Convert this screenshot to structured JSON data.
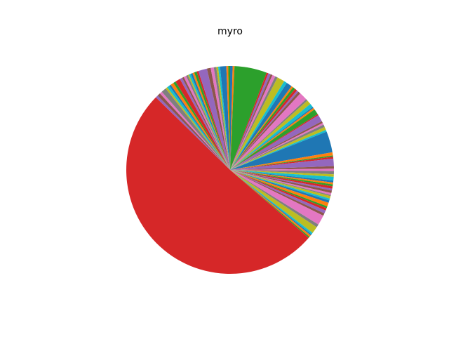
{
  "chart_data": {
    "type": "pie",
    "title": "myro",
    "start_angle_deg": 90,
    "direction": "clockwise",
    "legend": "none",
    "palette": [
      "#1f77b4",
      "#ff7f0e",
      "#2ca02c",
      "#d62728",
      "#9467bd",
      "#8c564b",
      "#e377c2",
      "#7f7f7f",
      "#bcbd22",
      "#17becf"
    ],
    "values": [
      0.4,
      0.3,
      5.2,
      0.3,
      0.4,
      0.3,
      0.5,
      0.4,
      1.2,
      0.5,
      0.9,
      0.3,
      0.4,
      0.4,
      0.3,
      0.4,
      1.3,
      0.3,
      0.7,
      0.6,
      0.2,
      0.3,
      0.9,
      0.2,
      1.1,
      0.3,
      0.3,
      0.4,
      0.5,
      0.3,
      3.4,
      0.5,
      0.2,
      0.3,
      1.2,
      0.4,
      0.4,
      0.5,
      0.4,
      0.6,
      0.3,
      0.3,
      0.3,
      0.4,
      0.3,
      0.4,
      0.3,
      0.2,
      0.4,
      0.3,
      0.4,
      0.6,
      0.3,
      0.4,
      0.5,
      0.4,
      1.6,
      0.5,
      1.1,
      0.3,
      0.2,
      0.3,
      0.2,
      52.6,
      0.4,
      0.5,
      0.4,
      0.8,
      0.3,
      0.4,
      0.3,
      0.5,
      0.4,
      0.8,
      0.4,
      0.3,
      0.4,
      0.3,
      0.2,
      0.3,
      0.3,
      0.3,
      0.4,
      0.3,
      1.4,
      0.6,
      0.5,
      0.4,
      0.3,
      0.3,
      1.0,
      0.3,
      0.3
    ]
  }
}
